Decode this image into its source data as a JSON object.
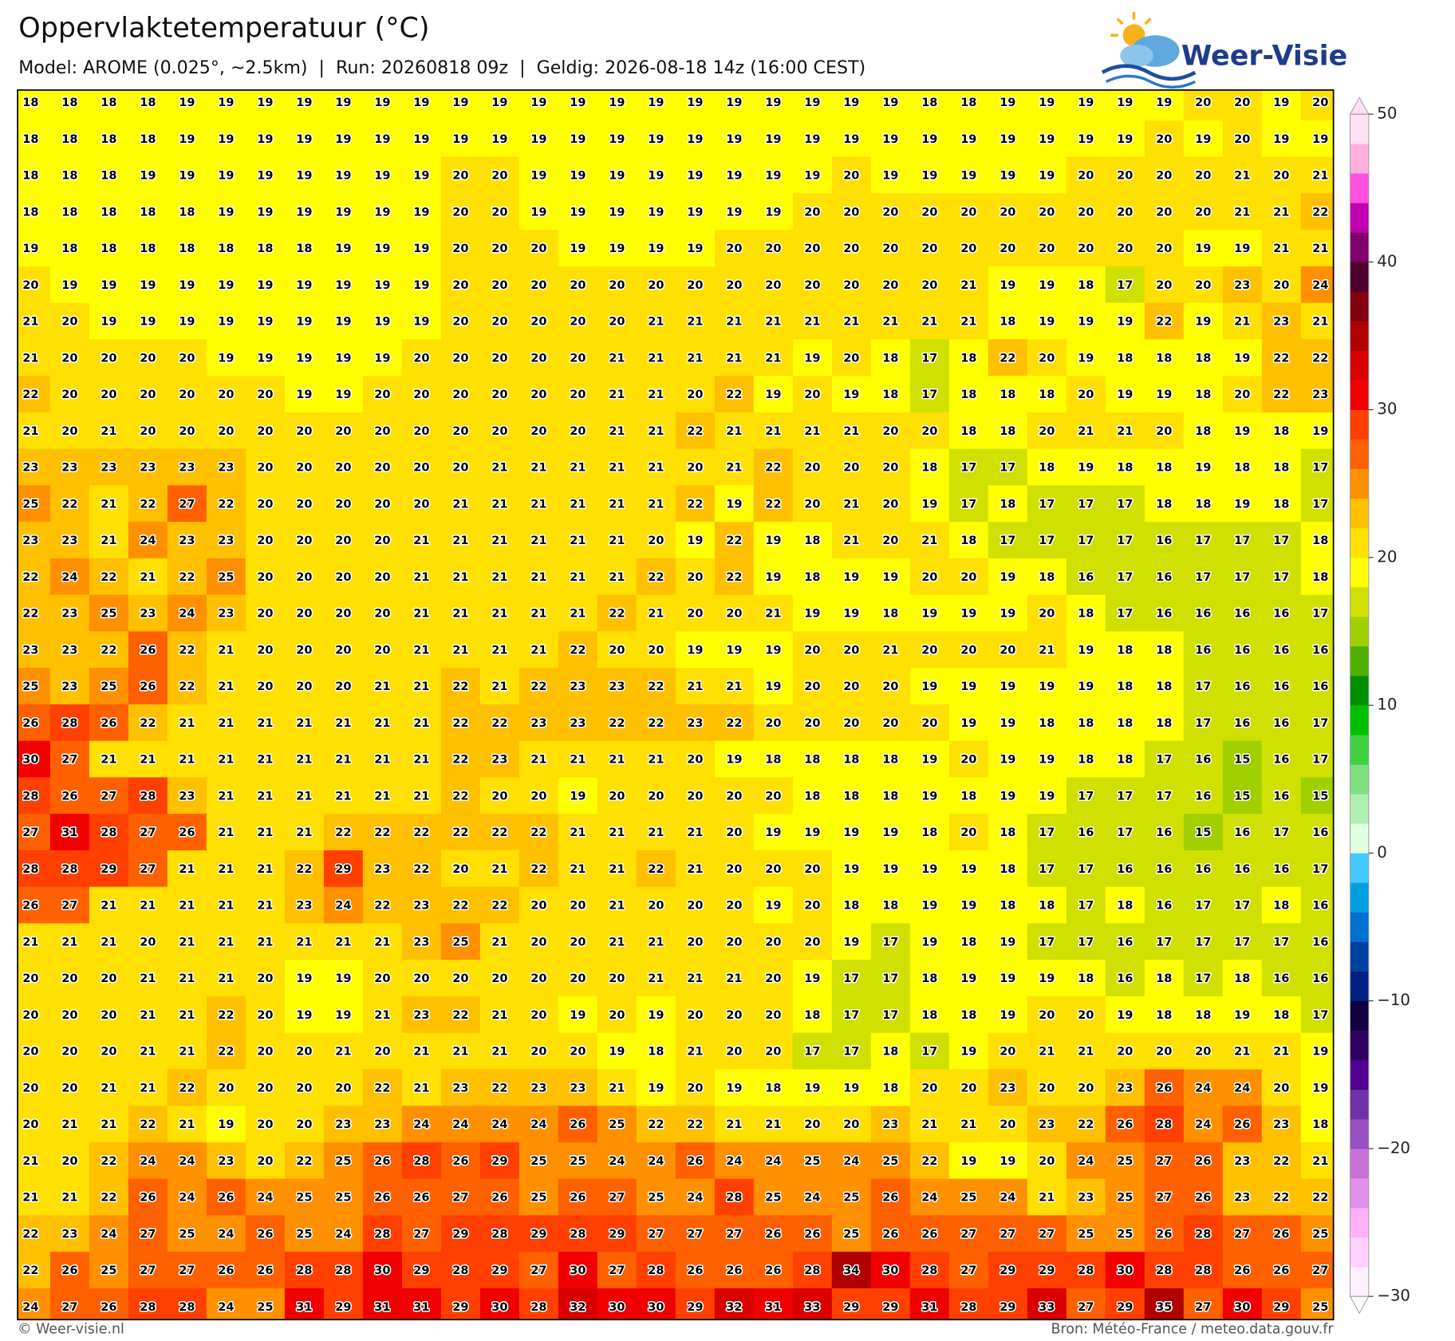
{
  "header": {
    "title": "Oppervlaktetemperatuur (°C)",
    "subtitle": "Model: AROME (0.025°, ~2.5km)  |  Run: 20260818 09z  |  Geldig: 2026-08-18 14z (16:00 CEST)"
  },
  "logo": {
    "text": "Weer-Visie"
  },
  "map": {
    "grid": [
      [
        18,
        18,
        18,
        18,
        19,
        19,
        19,
        19,
        19,
        19,
        19,
        19,
        19,
        19,
        19,
        19,
        19,
        19,
        19,
        19,
        19,
        19,
        19,
        18,
        18,
        19,
        19,
        19,
        19,
        19,
        20,
        20,
        19,
        20
      ],
      [
        18,
        18,
        18,
        18,
        19,
        19,
        19,
        19,
        19,
        19,
        19,
        19,
        19,
        19,
        19,
        19,
        19,
        19,
        19,
        19,
        19,
        19,
        19,
        19,
        19,
        19,
        19,
        19,
        19,
        20,
        19,
        20,
        19,
        19
      ],
      [
        18,
        18,
        18,
        19,
        19,
        19,
        19,
        19,
        19,
        19,
        19,
        20,
        20,
        19,
        19,
        19,
        19,
        19,
        19,
        19,
        19,
        20,
        19,
        19,
        19,
        19,
        19,
        20,
        20,
        20,
        20,
        21,
        20,
        21
      ],
      [
        18,
        18,
        18,
        18,
        18,
        19,
        19,
        19,
        19,
        19,
        19,
        20,
        20,
        19,
        19,
        19,
        19,
        19,
        19,
        19,
        20,
        20,
        20,
        20,
        20,
        20,
        20,
        20,
        20,
        20,
        20,
        21,
        21,
        22
      ],
      [
        19,
        18,
        18,
        18,
        18,
        18,
        18,
        18,
        19,
        19,
        19,
        20,
        20,
        20,
        19,
        19,
        19,
        19,
        20,
        20,
        20,
        20,
        20,
        20,
        20,
        20,
        20,
        20,
        20,
        20,
        19,
        19,
        21,
        21
      ],
      [
        20,
        19,
        19,
        19,
        19,
        19,
        19,
        19,
        19,
        19,
        19,
        20,
        20,
        20,
        20,
        20,
        20,
        20,
        20,
        20,
        20,
        20,
        20,
        20,
        21,
        19,
        19,
        18,
        17,
        20,
        20,
        23,
        20,
        24
      ],
      [
        21,
        20,
        19,
        19,
        19,
        19,
        19,
        19,
        19,
        19,
        19,
        20,
        20,
        20,
        20,
        20,
        21,
        21,
        21,
        21,
        21,
        21,
        21,
        21,
        21,
        18,
        19,
        19,
        19,
        22,
        19,
        21,
        23,
        21
      ],
      [
        21,
        20,
        20,
        20,
        20,
        19,
        19,
        19,
        19,
        19,
        20,
        20,
        20,
        20,
        20,
        21,
        21,
        21,
        21,
        21,
        19,
        20,
        18,
        17,
        18,
        22,
        20,
        19,
        18,
        18,
        18,
        19,
        22,
        22
      ],
      [
        22,
        20,
        20,
        20,
        20,
        20,
        20,
        19,
        19,
        20,
        20,
        20,
        20,
        20,
        20,
        21,
        21,
        20,
        22,
        19,
        20,
        19,
        18,
        17,
        18,
        18,
        18,
        20,
        19,
        19,
        18,
        20,
        22,
        23
      ],
      [
        21,
        20,
        21,
        20,
        20,
        20,
        20,
        20,
        20,
        20,
        20,
        20,
        20,
        20,
        20,
        21,
        21,
        22,
        21,
        21,
        21,
        21,
        20,
        20,
        18,
        18,
        20,
        21,
        21,
        20,
        18,
        19,
        18,
        19
      ],
      [
        23,
        23,
        23,
        23,
        23,
        23,
        20,
        20,
        20,
        20,
        20,
        20,
        21,
        21,
        21,
        21,
        21,
        20,
        21,
        22,
        20,
        20,
        20,
        18,
        17,
        17,
        18,
        19,
        18,
        18,
        19,
        18,
        18,
        17
      ],
      [
        25,
        22,
        21,
        22,
        27,
        22,
        20,
        20,
        20,
        20,
        20,
        21,
        21,
        21,
        21,
        21,
        21,
        22,
        19,
        22,
        20,
        21,
        20,
        19,
        17,
        18,
        17,
        17,
        17,
        18,
        18,
        19,
        18,
        17
      ],
      [
        23,
        23,
        21,
        24,
        23,
        23,
        20,
        20,
        20,
        20,
        21,
        21,
        21,
        21,
        21,
        21,
        20,
        19,
        22,
        19,
        18,
        21,
        20,
        21,
        18,
        17,
        17,
        17,
        17,
        16,
        17,
        17,
        17,
        18
      ],
      [
        22,
        24,
        22,
        21,
        22,
        25,
        20,
        20,
        20,
        20,
        21,
        21,
        21,
        21,
        21,
        21,
        22,
        20,
        22,
        19,
        18,
        19,
        19,
        20,
        20,
        19,
        18,
        16,
        17,
        16,
        17,
        17,
        17,
        18
      ],
      [
        22,
        23,
        25,
        23,
        24,
        23,
        20,
        20,
        20,
        20,
        21,
        21,
        21,
        21,
        21,
        22,
        21,
        20,
        20,
        21,
        19,
        19,
        18,
        19,
        19,
        19,
        20,
        18,
        17,
        16,
        16,
        16,
        16,
        17
      ],
      [
        23,
        23,
        22,
        26,
        22,
        21,
        20,
        20,
        20,
        20,
        21,
        21,
        21,
        21,
        22,
        20,
        20,
        19,
        19,
        19,
        20,
        20,
        21,
        20,
        20,
        20,
        21,
        19,
        18,
        18,
        16,
        16,
        16,
        16
      ],
      [
        25,
        23,
        25,
        26,
        22,
        21,
        20,
        20,
        20,
        21,
        21,
        22,
        21,
        22,
        23,
        23,
        22,
        21,
        21,
        19,
        20,
        20,
        20,
        19,
        19,
        19,
        19,
        19,
        18,
        18,
        17,
        16,
        16,
        16
      ],
      [
        26,
        28,
        26,
        22,
        21,
        21,
        21,
        21,
        21,
        21,
        21,
        22,
        22,
        23,
        23,
        22,
        22,
        23,
        22,
        20,
        20,
        20,
        20,
        20,
        19,
        19,
        18,
        18,
        18,
        18,
        17,
        16,
        16,
        17
      ],
      [
        30,
        27,
        21,
        21,
        21,
        21,
        21,
        21,
        21,
        21,
        21,
        22,
        23,
        21,
        21,
        21,
        21,
        20,
        19,
        18,
        18,
        18,
        18,
        19,
        20,
        19,
        19,
        18,
        18,
        17,
        16,
        15,
        16,
        17
      ],
      [
        28,
        26,
        27,
        28,
        23,
        21,
        21,
        21,
        21,
        21,
        21,
        22,
        20,
        20,
        19,
        20,
        20,
        20,
        20,
        20,
        18,
        18,
        18,
        19,
        18,
        19,
        19,
        17,
        17,
        17,
        16,
        15,
        16,
        15
      ],
      [
        27,
        31,
        28,
        27,
        26,
        21,
        21,
        21,
        22,
        22,
        22,
        22,
        22,
        22,
        21,
        21,
        21,
        21,
        20,
        19,
        19,
        19,
        19,
        18,
        20,
        18,
        17,
        16,
        17,
        16,
        15,
        16,
        17,
        16
      ],
      [
        28,
        28,
        29,
        27,
        21,
        21,
        21,
        22,
        29,
        23,
        22,
        20,
        21,
        22,
        21,
        21,
        22,
        21,
        20,
        20,
        20,
        19,
        19,
        19,
        19,
        18,
        17,
        17,
        16,
        16,
        16,
        16,
        16,
        17
      ],
      [
        26,
        27,
        21,
        21,
        21,
        21,
        21,
        23,
        24,
        22,
        23,
        22,
        22,
        20,
        20,
        21,
        20,
        20,
        20,
        19,
        20,
        18,
        18,
        19,
        19,
        18,
        18,
        17,
        18,
        16,
        17,
        17,
        18,
        16
      ],
      [
        21,
        21,
        21,
        20,
        21,
        21,
        21,
        21,
        21,
        21,
        23,
        25,
        21,
        20,
        20,
        21,
        21,
        20,
        20,
        20,
        20,
        19,
        17,
        19,
        18,
        19,
        17,
        17,
        16,
        17,
        17,
        17,
        17,
        16
      ],
      [
        20,
        20,
        20,
        21,
        21,
        21,
        20,
        19,
        19,
        20,
        20,
        20,
        20,
        20,
        20,
        20,
        21,
        21,
        21,
        20,
        19,
        17,
        17,
        18,
        19,
        19,
        19,
        18,
        16,
        18,
        17,
        18,
        16,
        16
      ],
      [
        20,
        20,
        20,
        21,
        21,
        22,
        20,
        19,
        19,
        21,
        23,
        22,
        21,
        20,
        19,
        20,
        19,
        20,
        20,
        20,
        18,
        17,
        17,
        18,
        18,
        19,
        20,
        20,
        19,
        18,
        18,
        19,
        18,
        17
      ],
      [
        20,
        20,
        20,
        21,
        21,
        22,
        20,
        20,
        21,
        20,
        21,
        21,
        21,
        20,
        20,
        19,
        18,
        21,
        20,
        20,
        17,
        17,
        18,
        17,
        19,
        20,
        21,
        21,
        20,
        20,
        20,
        21,
        21,
        19
      ],
      [
        20,
        20,
        21,
        21,
        22,
        20,
        20,
        20,
        20,
        22,
        21,
        23,
        22,
        23,
        23,
        21,
        19,
        20,
        19,
        18,
        19,
        19,
        18,
        20,
        20,
        23,
        20,
        20,
        23,
        26,
        24,
        24,
        20,
        19
      ],
      [
        20,
        21,
        21,
        22,
        21,
        19,
        20,
        20,
        23,
        23,
        24,
        24,
        24,
        24,
        26,
        25,
        22,
        22,
        21,
        21,
        20,
        20,
        23,
        21,
        21,
        20,
        23,
        22,
        26,
        28,
        24,
        26,
        23,
        18
      ],
      [
        21,
        20,
        22,
        24,
        24,
        23,
        20,
        22,
        25,
        26,
        28,
        26,
        29,
        25,
        25,
        24,
        24,
        26,
        24,
        24,
        25,
        24,
        25,
        22,
        19,
        19,
        20,
        24,
        25,
        27,
        26,
        23,
        22,
        21
      ],
      [
        21,
        21,
        22,
        26,
        24,
        26,
        24,
        25,
        25,
        26,
        26,
        27,
        26,
        25,
        26,
        27,
        25,
        24,
        28,
        25,
        24,
        25,
        26,
        24,
        25,
        24,
        21,
        23,
        25,
        27,
        26,
        23,
        22,
        22
      ],
      [
        22,
        23,
        24,
        27,
        25,
        24,
        26,
        25,
        24,
        28,
        27,
        29,
        28,
        29,
        28,
        29,
        27,
        27,
        27,
        26,
        26,
        25,
        26,
        26,
        27,
        27,
        27,
        25,
        25,
        26,
        28,
        27,
        26,
        25
      ],
      [
        22,
        26,
        25,
        27,
        27,
        26,
        26,
        28,
        28,
        30,
        29,
        28,
        29,
        27,
        30,
        27,
        28,
        26,
        26,
        26,
        28,
        34,
        30,
        28,
        27,
        29,
        29,
        28,
        30,
        28,
        28,
        26,
        26,
        27
      ],
      [
        24,
        27,
        26,
        28,
        28,
        24,
        25,
        31,
        29,
        31,
        31,
        29,
        30,
        28,
        32,
        30,
        30,
        29,
        32,
        31,
        33,
        29,
        29,
        31,
        28,
        29,
        33,
        27,
        29,
        35,
        27,
        30,
        29,
        25
      ]
    ]
  },
  "colorbar": {
    "lim": [
      -30,
      50
    ],
    "colors": [
      "#fff0ff",
      "#ffd0ff",
      "#ffb0f8",
      "#e090e8",
      "#c870d8",
      "#9850c0",
      "#7030a8",
      "#500090",
      "#300060",
      "#100040",
      "#002080",
      "#0040a0",
      "#0070d0",
      "#00a0e0",
      "#40c8ff",
      "#e0ffe0",
      "#b0f0b0",
      "#80e080",
      "#40d040",
      "#00c000",
      "#009000",
      "#50b000",
      "#a0d000",
      "#d0e000",
      "#ffff00",
      "#ffe000",
      "#ffc000",
      "#ff9000",
      "#ff6000",
      "#ff4000",
      "#f00000",
      "#d80000",
      "#b00000",
      "#800010",
      "#500030",
      "#800070",
      "#c000b0",
      "#ff50e0",
      "#ffb0e0",
      "#ffe0f5"
    ],
    "under_color": "#fff8ff",
    "over_color": "#ffe0f5",
    "ticks": [
      {
        "value": -30,
        "label": "−30"
      },
      {
        "value": -20,
        "label": "−20"
      },
      {
        "value": -10,
        "label": "−10"
      },
      0,
      10,
      20,
      30,
      40,
      50
    ]
  },
  "footer": {
    "left": "© Weer-visie.nl",
    "right": "Bron: Météo-France / meteo.data.gouv.fr"
  }
}
